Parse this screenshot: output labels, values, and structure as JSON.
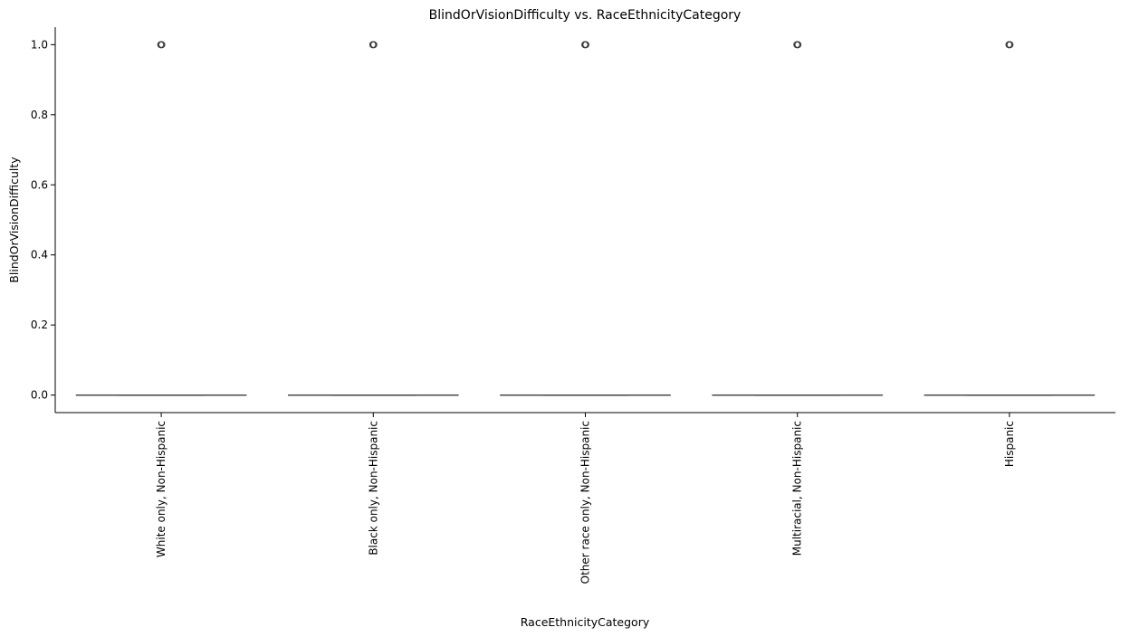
{
  "chart_data": {
    "type": "box",
    "title": "BlindOrVisionDifficulty vs. RaceEthnicityCategory",
    "xlabel": "RaceEthnicityCategory",
    "ylabel": "BlindOrVisionDifficulty",
    "ylim": [
      -0.05,
      1.05
    ],
    "yticks": [
      0.0,
      0.2,
      0.4,
      0.6,
      0.8,
      1.0
    ],
    "ytick_labels": [
      "0.0",
      "0.2",
      "0.4",
      "0.6",
      "0.8",
      "1.0"
    ],
    "grid": false,
    "categories": [
      "White only, Non-Hispanic",
      "Black only, Non-Hispanic",
      "Other race only, Non-Hispanic",
      "Multiracial, Non-Hispanic",
      "Hispanic"
    ],
    "boxes": [
      {
        "q1": 0,
        "median": 0,
        "q3": 0,
        "whisker_low": 0,
        "whisker_high": 0,
        "outliers": [
          1.0
        ]
      },
      {
        "q1": 0,
        "median": 0,
        "q3": 0,
        "whisker_low": 0,
        "whisker_high": 0,
        "outliers": [
          1.0
        ]
      },
      {
        "q1": 0,
        "median": 0,
        "q3": 0,
        "whisker_low": 0,
        "whisker_high": 0,
        "outliers": [
          1.0
        ]
      },
      {
        "q1": 0,
        "median": 0,
        "q3": 0,
        "whisker_low": 0,
        "whisker_high": 0,
        "outliers": [
          1.0
        ]
      },
      {
        "q1": 0,
        "median": 0,
        "q3": 0,
        "whisker_low": 0,
        "whisker_high": 0,
        "outliers": [
          1.0
        ]
      }
    ],
    "colors": {
      "box_line": "#3f3f3f",
      "axis": "#000000"
    }
  }
}
